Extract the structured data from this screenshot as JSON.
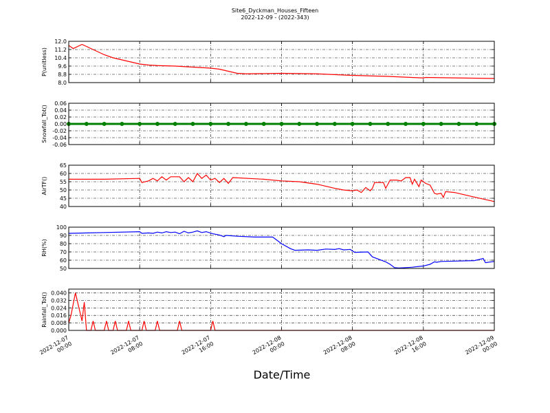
{
  "title": "Site6_Dyckman_Houses_Fifteen",
  "subtitle": "2022-12-09 - (2022-343)",
  "xlabel": "Date/Time",
  "xlim": [
    "2022-12-07 00:00",
    "2022-12-09 00:00"
  ],
  "xticks": [
    "2022-12-07 00:00",
    "2022-12-07 08:00",
    "2022-12-07 16:00",
    "2022-12-08 00:00",
    "2022-12-08 08:00",
    "2022-12-08 16:00",
    "2022-12-09 00:00"
  ],
  "chart_data": [
    {
      "type": "line",
      "ylabel": "P(unitless)",
      "ylim": [
        8,
        12
      ],
      "yticks": [
        {
          "value": 8,
          "label": "8.0"
        },
        8.8,
        9.6,
        10.4,
        11.2,
        {
          "value": 12,
          "label": "12.0"
        }
      ],
      "grid": true,
      "series": [
        {
          "color": "#ff0000",
          "x": [
            "2022-12-07 00:00",
            "2022-12-07 00:30",
            "2022-12-07 01:30",
            "2022-12-07 02:15",
            "2022-12-07 03:00",
            "2022-12-07 04:00",
            "2022-12-07 05:00",
            "2022-12-07 06:00",
            "2022-12-07 07:00",
            "2022-12-07 08:00",
            "2022-12-07 09:00",
            "2022-12-07 10:00",
            "2022-12-07 12:00",
            "2022-12-07 14:00",
            "2022-12-07 16:00",
            "2022-12-07 17:00",
            "2022-12-07 18:00",
            "2022-12-07 19:00",
            "2022-12-07 20:00",
            "2022-12-08 00:00",
            "2022-12-08 04:00",
            "2022-12-08 08:00",
            "2022-12-08 12:00",
            "2022-12-08 16:00",
            "2022-12-08 16:15",
            "2022-12-08 20:00",
            "2022-12-09 00:00"
          ],
          "values": [
            11.6,
            11.3,
            11.7,
            11.4,
            11.1,
            10.7,
            10.4,
            10.2,
            10.0,
            9.8,
            9.7,
            9.65,
            9.6,
            9.5,
            9.4,
            9.3,
            9.1,
            8.9,
            8.85,
            8.9,
            8.85,
            8.7,
            8.6,
            8.45,
            8.5,
            8.45,
            8.4
          ]
        }
      ]
    },
    {
      "type": "line",
      "ylabel": "Snowfall_Tot()",
      "ylim": [
        -0.06,
        0.06
      ],
      "yticks": [
        -0.06,
        -0.04,
        -0.02,
        {
          "value": 0,
          "label": "0.00"
        },
        0.02,
        0.04,
        0.06
      ],
      "grid": true,
      "series": [
        {
          "color": "#008000",
          "marker": "o",
          "x": [
            "2022-12-07 00:00",
            "2022-12-07 02:00",
            "2022-12-07 04:00",
            "2022-12-07 06:00",
            "2022-12-07 08:00",
            "2022-12-07 10:00",
            "2022-12-07 12:00",
            "2022-12-07 14:00",
            "2022-12-07 16:00",
            "2022-12-07 18:00",
            "2022-12-07 20:00",
            "2022-12-07 22:00",
            "2022-12-08 00:00",
            "2022-12-08 02:00",
            "2022-12-08 04:00",
            "2022-12-08 06:00",
            "2022-12-08 08:00",
            "2022-12-08 10:00",
            "2022-12-08 12:00",
            "2022-12-08 14:00",
            "2022-12-08 16:00",
            "2022-12-08 18:00",
            "2022-12-08 20:00",
            "2022-12-08 22:00",
            "2022-12-09 00:00"
          ],
          "values": [
            0,
            0,
            0,
            0,
            0,
            0,
            0,
            0,
            0,
            0,
            0,
            0,
            0,
            0,
            0,
            0,
            0,
            0,
            0,
            0,
            0,
            0,
            0,
            0,
            0
          ]
        }
      ]
    },
    {
      "type": "line",
      "ylabel": "AirTF()",
      "ylim": [
        40,
        65
      ],
      "yticks": [
        40,
        45,
        50,
        55,
        60,
        65
      ],
      "grid": true,
      "series": [
        {
          "color": "#ff0000",
          "x": [
            "2022-12-07 00:00",
            "2022-12-07 04:00",
            "2022-12-07 08:00",
            "2022-12-07 08:15",
            "2022-12-07 09:00",
            "2022-12-07 09:30",
            "2022-12-07 10:00",
            "2022-12-07 10:30",
            "2022-12-07 11:00",
            "2022-12-07 11:30",
            "2022-12-07 12:30",
            "2022-12-07 13:00",
            "2022-12-07 13:30",
            "2022-12-07 14:00",
            "2022-12-07 14:30",
            "2022-12-07 15:00",
            "2022-12-07 15:30",
            "2022-12-07 16:00",
            "2022-12-07 16:30",
            "2022-12-07 17:00",
            "2022-12-07 17:30",
            "2022-12-07 18:00",
            "2022-12-07 18:30",
            "2022-12-07 22:00",
            "2022-12-08 00:00",
            "2022-12-08 02:00",
            "2022-12-08 04:00",
            "2022-12-08 06:00",
            "2022-12-08 07:00",
            "2022-12-08 08:00",
            "2022-12-08 08:30",
            "2022-12-08 09:00",
            "2022-12-08 09:30",
            "2022-12-08 10:00",
            "2022-12-08 10:15",
            "2022-12-08 10:30",
            "2022-12-08 11:30",
            "2022-12-08 11:45",
            "2022-12-08 12:15",
            "2022-12-08 13:00",
            "2022-12-08 13:30",
            "2022-12-08 14:00",
            "2022-12-08 14:30",
            "2022-12-08 14:45",
            "2022-12-08 15:00",
            "2022-12-08 15:30",
            "2022-12-08 15:45",
            "2022-12-08 16:15",
            "2022-12-08 16:45",
            "2022-12-08 17:15",
            "2022-12-08 17:30",
            "2022-12-08 18:00",
            "2022-12-08 18:15",
            "2022-12-08 18:30",
            "2022-12-08 19:30",
            "2022-12-08 21:30",
            "2022-12-09 00:00"
          ],
          "values": [
            56.5,
            56.5,
            57,
            54.5,
            55.5,
            57,
            55.5,
            58,
            56,
            58,
            58,
            55,
            57.5,
            55,
            60,
            57,
            59,
            56,
            57,
            54.5,
            57,
            54,
            57.5,
            56.5,
            55.5,
            55,
            53.5,
            51,
            50,
            49.5,
            50,
            48.5,
            51.5,
            49.5,
            51,
            54.5,
            54.5,
            51,
            56,
            56,
            55.5,
            57.5,
            57.5,
            53.5,
            56.5,
            52,
            56,
            54,
            53,
            48,
            47.5,
            48,
            45.5,
            49,
            48.5,
            46,
            43
          ]
        }
      ]
    },
    {
      "type": "line",
      "ylabel": "RH(%)",
      "ylim": [
        50,
        100
      ],
      "yticks": [
        50,
        60,
        70,
        80,
        90,
        100
      ],
      "grid": true,
      "series": [
        {
          "color": "#0000ff",
          "x": [
            "2022-12-07 00:00",
            "2022-12-07 04:00",
            "2022-12-07 08:00",
            "2022-12-07 08:15",
            "2022-12-07 09:00",
            "2022-12-07 09:30",
            "2022-12-07 10:00",
            "2022-12-07 10:30",
            "2022-12-07 11:00",
            "2022-12-07 11:30",
            "2022-12-07 12:00",
            "2022-12-07 12:30",
            "2022-12-07 13:00",
            "2022-12-07 13:30",
            "2022-12-07 14:00",
            "2022-12-07 14:30",
            "2022-12-07 15:00",
            "2022-12-07 15:30",
            "2022-12-07 16:15",
            "2022-12-07 17:00",
            "2022-12-07 17:30",
            "2022-12-07 17:45",
            "2022-12-07 19:00",
            "2022-12-07 21:00",
            "2022-12-07 23:00",
            "2022-12-08 00:00",
            "2022-12-08 01:00",
            "2022-12-08 01:30",
            "2022-12-08 03:00",
            "2022-12-08 04:00",
            "2022-12-08 05:00",
            "2022-12-08 06:00",
            "2022-12-08 06:30",
            "2022-12-08 07:00",
            "2022-12-08 07:45",
            "2022-12-08 08:15",
            "2022-12-08 09:45",
            "2022-12-08 10:15",
            "2022-12-08 11:00",
            "2022-12-08 11:45",
            "2022-12-08 12:15",
            "2022-12-08 12:45",
            "2022-12-08 13:15",
            "2022-12-08 14:00",
            "2022-12-08 14:45",
            "2022-12-08 16:00",
            "2022-12-08 16:45",
            "2022-12-08 17:15",
            "2022-12-08 17:30",
            "2022-12-08 18:00",
            "2022-12-08 20:00",
            "2022-12-08 21:45",
            "2022-12-08 22:45",
            "2022-12-08 23:00",
            "2022-12-09 00:00"
          ],
          "values": [
            92.5,
            93.5,
            94.5,
            92.5,
            93,
            92.5,
            94,
            93,
            94.5,
            93.5,
            94,
            92,
            95,
            93,
            94,
            95.5,
            93.5,
            94.5,
            92,
            90.5,
            88.5,
            90,
            89,
            88,
            88,
            80,
            74,
            72,
            72.5,
            72,
            73.5,
            73,
            74,
            72.5,
            73,
            69.5,
            70,
            64,
            61,
            58,
            55,
            51,
            50.5,
            51,
            51.5,
            53,
            55,
            58,
            57.5,
            58.5,
            59,
            59.5,
            62,
            57,
            58.5
          ]
        }
      ]
    },
    {
      "type": "line",
      "ylabel": "Rainfall_Tot()",
      "ylim": [
        0,
        0.044
      ],
      "yticks": [
        {
          "value": 0,
          "label": "0.000"
        },
        0.008,
        0.016,
        0.024,
        0.032,
        {
          "value": 0.04,
          "label": "0.040"
        }
      ],
      "grid": true,
      "series": [
        {
          "color": "#ff0000",
          "x": [
            "2022-12-07 00:00",
            "2022-12-07 00:15",
            "2022-12-07 00:45",
            "2022-12-07 01:30",
            "2022-12-07 01:45",
            "2022-12-07 02:00",
            "2022-12-07 02:30",
            "2022-12-07 02:45",
            "2022-12-07 03:00",
            "2022-12-07 04:00",
            "2022-12-07 04:15",
            "2022-12-07 04:30",
            "2022-12-07 05:00",
            "2022-12-07 05:15",
            "2022-12-07 05:30",
            "2022-12-07 06:30",
            "2022-12-07 06:45",
            "2022-12-07 07:00",
            "2022-12-07 08:15",
            "2022-12-07 08:30",
            "2022-12-07 08:45",
            "2022-12-07 09:45",
            "2022-12-07 10:00",
            "2022-12-07 10:15",
            "2022-12-07 12:15",
            "2022-12-07 12:30",
            "2022-12-07 12:45",
            "2022-12-07 16:00",
            "2022-12-07 16:15",
            "2022-12-07 16:30",
            "2022-12-09 00:00"
          ],
          "values": [
            0.008,
            0.016,
            0.04,
            0.01,
            0.03,
            0,
            0,
            0.01,
            0,
            0,
            0.01,
            0,
            0,
            0.01,
            0,
            0,
            0.01,
            0,
            0,
            0.01,
            0,
            0,
            0.01,
            0,
            0,
            0.01,
            0,
            0,
            0.01,
            0,
            0
          ]
        }
      ]
    }
  ]
}
